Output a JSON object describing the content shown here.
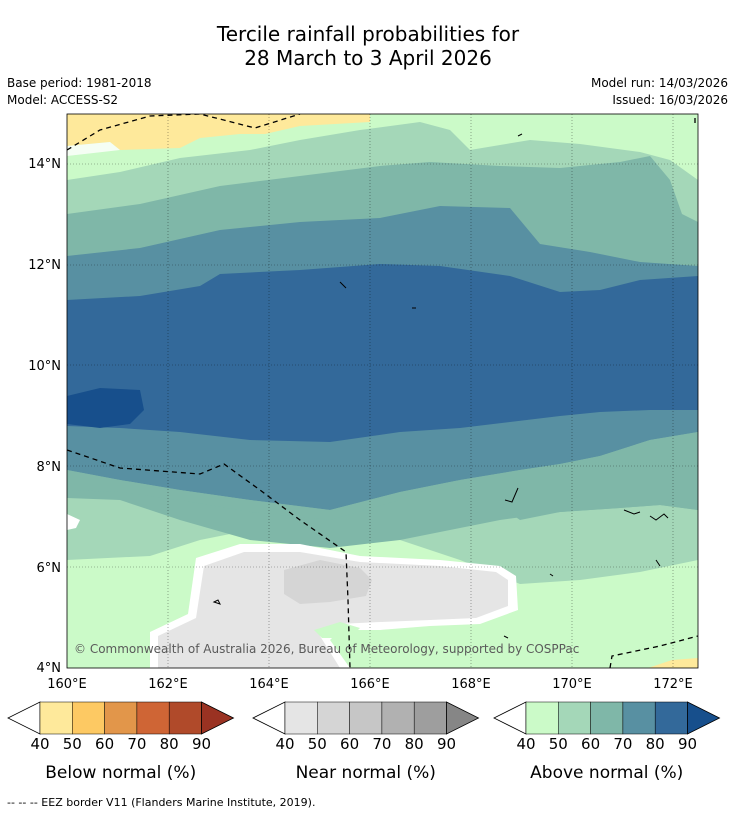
{
  "title_line1": "Tercile rainfall probabilities for",
  "title_line2": "28 March to 3 April 2026",
  "base_period": "Base period: 1981-2018",
  "model": "Model: ACCESS-S2",
  "model_run": "Model run: 14/03/2026",
  "issued": "Issued: 16/03/2026",
  "copyright": "© Commonwealth of Australia 2026, Bureau of Meteorology, supported by COSPPac",
  "lat_ticks": [
    "14°N",
    "12°N",
    "10°N",
    "8°N",
    "6°N",
    "4°N"
  ],
  "lon_ticks": [
    "160°E",
    "162°E",
    "164°E",
    "166°E",
    "168°E",
    "170°E",
    "172°E"
  ],
  "colorbars": [
    {
      "label": "Below normal (%)",
      "ticks": [
        "40",
        "50",
        "60",
        "70",
        "80",
        "90"
      ],
      "colors": [
        "#fee99b",
        "#fdc963",
        "#e2964a",
        "#cf6535",
        "#b04a2a",
        "#9a3222"
      ]
    },
    {
      "label": "Near normal (%)",
      "ticks": [
        "40",
        "50",
        "60",
        "70",
        "80",
        "90"
      ],
      "colors": [
        "#e5e5e5",
        "#d5d5d5",
        "#c6c6c6",
        "#b1b1b1",
        "#9e9e9e",
        "#868686"
      ]
    },
    {
      "label": "Above normal (%)",
      "ticks": [
        "40",
        "50",
        "60",
        "70",
        "80",
        "90"
      ],
      "colors": [
        "#cbfac8",
        "#a4d7b8",
        "#7fb7a8",
        "#5890a2",
        "#33699a",
        "#174f8c"
      ]
    }
  ],
  "footer": "--  --  -- EEZ border V11 (Flanders Marine Institute, 2019)."
}
